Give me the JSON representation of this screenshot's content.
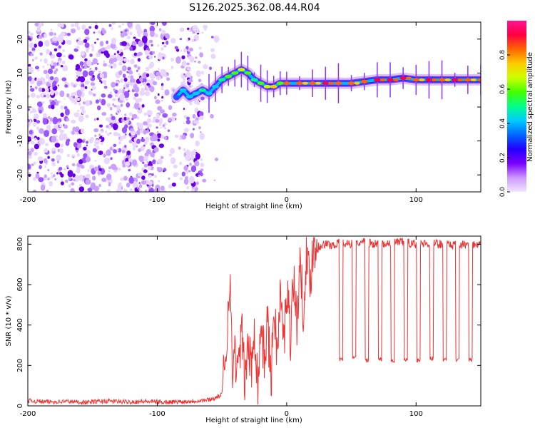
{
  "figure_title": "S126.2025.362.08.44.R04",
  "chart_data": [
    {
      "type": "heatmap",
      "title": "",
      "xlabel": "Height of straight line (km)",
      "ylabel": "Frequency (Hz)",
      "xlim": [
        -200,
        150
      ],
      "ylim": [
        -25,
        25
      ],
      "xticks": [
        -200,
        -100,
        0,
        100
      ],
      "yticks": [
        -20,
        -10,
        0,
        10,
        20
      ],
      "colorbar": {
        "label": "Normalized spectral amplitude",
        "range": [
          0,
          1
        ],
        "ticks": [
          0.0,
          0.2,
          0.4,
          0.6,
          0.8
        ],
        "tick_labels": [
          "0.0",
          "0.2",
          "0.4",
          "0.6",
          "0.8"
        ],
        "colors": [
          "#f3e6ff",
          "#cc99ff",
          "#7a00ff",
          "#2200ff",
          "#0066ff",
          "#00ccff",
          "#00ff88",
          "#44ff00",
          "#ccff00",
          "#ffcc00",
          "#ff6600",
          "#ff0040",
          "#ff1493"
        ]
      },
      "noise_region_x": [
        -200,
        -65
      ],
      "signal_trace": {
        "x": [
          -85,
          -80,
          -75,
          -70,
          -65,
          -60,
          -55,
          -50,
          -45,
          -40,
          -35,
          -30,
          -25,
          -20,
          -15,
          -10,
          -5,
          0,
          10,
          20,
          30,
          40,
          50,
          60,
          70,
          80,
          90,
          100,
          110,
          120,
          130,
          140,
          150
        ],
        "freq": [
          3,
          5,
          3,
          4,
          5,
          4,
          6,
          8,
          9,
          10,
          11,
          10,
          8,
          7,
          6,
          6,
          7,
          7,
          7,
          7,
          7,
          7,
          7,
          7.5,
          8,
          8,
          8.5,
          8,
          8,
          8,
          8,
          8,
          8
        ],
        "amplitude": [
          0.35,
          0.45,
          0.4,
          0.45,
          0.5,
          0.4,
          0.4,
          0.5,
          0.55,
          0.6,
          0.65,
          0.55,
          0.5,
          0.55,
          0.7,
          0.75,
          0.6,
          0.8,
          0.85,
          0.85,
          0.9,
          0.8,
          0.85,
          0.8,
          0.9,
          0.95,
          0.9,
          0.85,
          0.9,
          0.85,
          0.9,
          0.85,
          0.85
        ]
      }
    },
    {
      "type": "line",
      "title": "",
      "xlabel": "Height of straight line (km)",
      "ylabel": "SNR (10 * v/v)",
      "xlim": [
        -200,
        150
      ],
      "ylim": [
        0,
        840
      ],
      "xticks": [
        -200,
        -100,
        0,
        100
      ],
      "yticks": [
        0,
        200,
        400,
        600,
        800
      ],
      "series": [
        {
          "color": "#ee3333",
          "x": [
            -200,
            -185,
            -170,
            -155,
            -140,
            -125,
            -110,
            -95,
            -80,
            -70,
            -60,
            -55,
            -50,
            -46,
            -44,
            -42,
            -40,
            -38,
            -35,
            -32,
            -30,
            -27,
            -25,
            -22,
            -20,
            -17,
            -15,
            -12,
            -10,
            -7,
            -5,
            -2,
            0,
            3,
            5,
            8,
            10,
            13,
            15,
            18,
            20,
            25,
            30,
            35,
            40,
            50,
            60,
            70,
            80,
            90,
            100,
            110,
            120,
            130,
            140,
            150
          ],
          "y": [
            25,
            20,
            22,
            18,
            24,
            20,
            22,
            19,
            21,
            25,
            30,
            40,
            55,
            350,
            700,
            150,
            300,
            120,
            380,
            110,
            320,
            160,
            420,
            90,
            430,
            200,
            450,
            110,
            500,
            250,
            550,
            300,
            600,
            350,
            650,
            400,
            700,
            480,
            740,
            600,
            780,
            790,
            800,
            795,
            805,
            800,
            810,
            800,
            805,
            810,
            800,
            805,
            800,
            795,
            800,
            790
          ]
        }
      ],
      "dropouts": {
        "x": [
          42,
          52,
          62,
          72,
          82,
          92,
          102,
          112,
          122,
          132,
          142
        ],
        "y": [
          220,
          225,
          215,
          220,
          210,
          220,
          215,
          225,
          220,
          215,
          220
        ]
      }
    }
  ]
}
